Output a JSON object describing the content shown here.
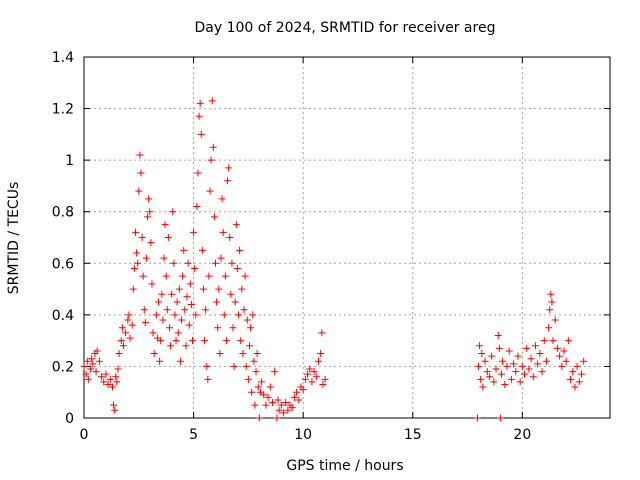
{
  "chart_data": {
    "type": "scatter",
    "title": "Day 100 of 2024, SRMTID for receiver areg",
    "xlabel": "GPS time / hours",
    "ylabel": "SRMTID / TECUs",
    "xlim": [
      0,
      24
    ],
    "ylim": [
      0,
      1.4
    ],
    "xticks": [
      0,
      5,
      10,
      15,
      20
    ],
    "xtick_labels": [
      "0",
      "5",
      "10",
      "15",
      "20"
    ],
    "yticks": [
      0,
      0.2,
      0.4,
      0.6,
      0.8,
      1,
      1.2,
      1.4
    ],
    "ytick_labels": [
      "0",
      "0.2",
      "0.4",
      "0.6",
      "0.8",
      "1",
      "1.2",
      "1.4"
    ],
    "grid": true,
    "marker": "+",
    "series": [
      {
        "name": "SRMTID",
        "color": "#ff0000",
        "points": [
          [
            0.0,
            0.2
          ],
          [
            0.1,
            0.17
          ],
          [
            0.15,
            0.22
          ],
          [
            0.2,
            0.15
          ],
          [
            0.3,
            0.19
          ],
          [
            0.35,
            0.23
          ],
          [
            0.4,
            0.21
          ],
          [
            0.5,
            0.25
          ],
          [
            0.55,
            0.18
          ],
          [
            0.6,
            0.26
          ],
          [
            0.7,
            0.22
          ],
          [
            0.8,
            0.16
          ],
          [
            0.9,
            0.14
          ],
          [
            1.0,
            0.17
          ],
          [
            1.1,
            0.13
          ],
          [
            1.2,
            0.15
          ],
          [
            1.3,
            0.12
          ],
          [
            1.35,
            0.05
          ],
          [
            1.4,
            0.03
          ],
          [
            1.45,
            0.16
          ],
          [
            1.5,
            0.14
          ],
          [
            1.55,
            0.19
          ],
          [
            1.6,
            0.25
          ],
          [
            1.7,
            0.3
          ],
          [
            1.75,
            0.35
          ],
          [
            1.8,
            0.28
          ],
          [
            1.9,
            0.33
          ],
          [
            2.0,
            0.38
          ],
          [
            2.05,
            0.4
          ],
          [
            2.1,
            0.31
          ],
          [
            2.2,
            0.36
          ],
          [
            2.25,
            0.5
          ],
          [
            2.3,
            0.58
          ],
          [
            2.35,
            0.72
          ],
          [
            2.4,
            0.64
          ],
          [
            2.45,
            0.6
          ],
          [
            2.5,
            0.88
          ],
          [
            2.55,
            1.02
          ],
          [
            2.6,
            0.95
          ],
          [
            2.65,
            0.7
          ],
          [
            2.7,
            0.55
          ],
          [
            2.75,
            0.42
          ],
          [
            2.8,
            0.37
          ],
          [
            2.85,
            0.62
          ],
          [
            2.9,
            0.78
          ],
          [
            2.95,
            0.85
          ],
          [
            3.0,
            0.8
          ],
          [
            3.05,
            0.68
          ],
          [
            3.1,
            0.52
          ],
          [
            3.15,
            0.33
          ],
          [
            3.2,
            0.25
          ],
          [
            3.3,
            0.4
          ],
          [
            3.35,
            0.31
          ],
          [
            3.4,
            0.45
          ],
          [
            3.45,
            0.22
          ],
          [
            3.5,
            0.3
          ],
          [
            3.55,
            0.48
          ],
          [
            3.6,
            0.38
          ],
          [
            3.65,
            0.62
          ],
          [
            3.7,
            0.75
          ],
          [
            3.75,
            0.55
          ],
          [
            3.8,
            0.42
          ],
          [
            3.85,
            0.7
          ],
          [
            3.9,
            0.35
          ],
          [
            3.95,
            0.28
          ],
          [
            4.0,
            0.48
          ],
          [
            4.05,
            0.8
          ],
          [
            4.1,
            0.6
          ],
          [
            4.15,
            0.4
          ],
          [
            4.2,
            0.3
          ],
          [
            4.25,
            0.45
          ],
          [
            4.3,
            0.33
          ],
          [
            4.35,
            0.5
          ],
          [
            4.4,
            0.22
          ],
          [
            4.45,
            0.38
          ],
          [
            4.5,
            0.55
          ],
          [
            4.55,
            0.65
          ],
          [
            4.6,
            0.42
          ],
          [
            4.65,
            0.28
          ],
          [
            4.7,
            0.47
          ],
          [
            4.75,
            0.6
          ],
          [
            4.8,
            0.36
          ],
          [
            4.85,
            0.52
          ],
          [
            4.9,
            0.44
          ],
          [
            4.95,
            0.3
          ],
          [
            5.0,
            0.72
          ],
          [
            5.05,
            0.58
          ],
          [
            5.1,
            0.4
          ],
          [
            5.15,
            0.82
          ],
          [
            5.2,
            0.95
          ],
          [
            5.25,
            1.17
          ],
          [
            5.3,
            1.22
          ],
          [
            5.35,
            1.1
          ],
          [
            5.4,
            0.65
          ],
          [
            5.45,
            0.5
          ],
          [
            5.5,
            0.3
          ],
          [
            5.55,
            0.42
          ],
          [
            5.6,
            0.2
          ],
          [
            5.65,
            0.15
          ],
          [
            5.7,
            0.55
          ],
          [
            5.75,
            0.88
          ],
          [
            5.8,
            1.0
          ],
          [
            5.85,
            1.23
          ],
          [
            5.9,
            1.05
          ],
          [
            5.95,
            0.78
          ],
          [
            6.0,
            0.6
          ],
          [
            6.05,
            0.45
          ],
          [
            6.1,
            0.35
          ],
          [
            6.15,
            0.5
          ],
          [
            6.2,
            0.25
          ],
          [
            6.25,
            0.62
          ],
          [
            6.3,
            0.85
          ],
          [
            6.35,
            0.72
          ],
          [
            6.4,
            0.4
          ],
          [
            6.45,
            0.55
          ],
          [
            6.5,
            0.3
          ],
          [
            6.55,
            0.92
          ],
          [
            6.6,
            0.97
          ],
          [
            6.65,
            0.7
          ],
          [
            6.7,
            0.48
          ],
          [
            6.75,
            0.6
          ],
          [
            6.8,
            0.35
          ],
          [
            6.85,
            0.2
          ],
          [
            6.9,
            0.45
          ],
          [
            6.95,
            0.75
          ],
          [
            7.0,
            0.58
          ],
          [
            7.05,
            0.4
          ],
          [
            7.1,
            0.65
          ],
          [
            7.15,
            0.3
          ],
          [
            7.2,
            0.5
          ],
          [
            7.25,
            0.25
          ],
          [
            7.3,
            0.42
          ],
          [
            7.35,
            0.55
          ],
          [
            7.4,
            0.2
          ],
          [
            7.45,
            0.38
          ],
          [
            7.5,
            0.15
          ],
          [
            7.55,
            0.28
          ],
          [
            7.6,
            0.35
          ],
          [
            7.65,
            0.1
          ],
          [
            7.7,
            0.4
          ],
          [
            7.75,
            0.22
          ],
          [
            7.8,
            0.05
          ],
          [
            7.85,
            0.18
          ],
          [
            7.9,
            0.25
          ],
          [
            7.95,
            0.12
          ],
          [
            8.0,
            0.0
          ],
          [
            8.05,
            0.1
          ],
          [
            8.1,
            0.14
          ],
          [
            8.2,
            0.09
          ],
          [
            8.3,
            0.05
          ],
          [
            8.4,
            0.08
          ],
          [
            8.5,
            0.12
          ],
          [
            8.6,
            0.06
          ],
          [
            8.7,
            0.18
          ],
          [
            8.8,
            0.0
          ],
          [
            8.85,
            0.07
          ],
          [
            8.9,
            0.03
          ],
          [
            9.0,
            0.05
          ],
          [
            9.1,
            0.02
          ],
          [
            9.2,
            0.06
          ],
          [
            9.3,
            0.03
          ],
          [
            9.4,
            0.05
          ],
          [
            9.5,
            0.04
          ],
          [
            9.6,
            0.08
          ],
          [
            9.7,
            0.1
          ],
          [
            9.8,
            0.07
          ],
          [
            9.9,
            0.12
          ],
          [
            10.0,
            0.11
          ],
          [
            10.1,
            0.15
          ],
          [
            10.2,
            0.17
          ],
          [
            10.3,
            0.19
          ],
          [
            10.4,
            0.14
          ],
          [
            10.5,
            0.18
          ],
          [
            10.6,
            0.16
          ],
          [
            10.7,
            0.22
          ],
          [
            10.8,
            0.25
          ],
          [
            10.85,
            0.33
          ],
          [
            10.9,
            0.13
          ],
          [
            11.0,
            0.15
          ],
          [
            17.95,
            0.0
          ],
          [
            18.0,
            0.2
          ],
          [
            18.05,
            0.28
          ],
          [
            18.1,
            0.15
          ],
          [
            18.15,
            0.25
          ],
          [
            18.2,
            0.12
          ],
          [
            18.3,
            0.22
          ],
          [
            18.4,
            0.18
          ],
          [
            18.5,
            0.16
          ],
          [
            18.6,
            0.24
          ],
          [
            18.7,
            0.14
          ],
          [
            18.8,
            0.19
          ],
          [
            18.9,
            0.32
          ],
          [
            18.95,
            0.27
          ],
          [
            19.0,
            0.0
          ],
          [
            19.05,
            0.17
          ],
          [
            19.1,
            0.22
          ],
          [
            19.2,
            0.13
          ],
          [
            19.3,
            0.2
          ],
          [
            19.4,
            0.26
          ],
          [
            19.5,
            0.15
          ],
          [
            19.6,
            0.21
          ],
          [
            19.7,
            0.18
          ],
          [
            19.8,
            0.24
          ],
          [
            19.9,
            0.14
          ],
          [
            20.0,
            0.2
          ],
          [
            20.1,
            0.17
          ],
          [
            20.2,
            0.27
          ],
          [
            20.3,
            0.19
          ],
          [
            20.4,
            0.23
          ],
          [
            20.5,
            0.16
          ],
          [
            20.6,
            0.28
          ],
          [
            20.7,
            0.21
          ],
          [
            20.8,
            0.25
          ],
          [
            20.9,
            0.18
          ],
          [
            21.0,
            0.3
          ],
          [
            21.1,
            0.22
          ],
          [
            21.2,
            0.35
          ],
          [
            21.25,
            0.42
          ],
          [
            21.3,
            0.48
          ],
          [
            21.35,
            0.45
          ],
          [
            21.4,
            0.3
          ],
          [
            21.5,
            0.38
          ],
          [
            21.6,
            0.27
          ],
          [
            21.7,
            0.24
          ],
          [
            21.8,
            0.2
          ],
          [
            21.9,
            0.26
          ],
          [
            22.0,
            0.22
          ],
          [
            22.1,
            0.3
          ],
          [
            22.2,
            0.15
          ],
          [
            22.3,
            0.18
          ],
          [
            22.4,
            0.12
          ],
          [
            22.5,
            0.2
          ],
          [
            22.6,
            0.14
          ],
          [
            22.7,
            0.17
          ],
          [
            22.8,
            0.22
          ]
        ]
      }
    ]
  }
}
